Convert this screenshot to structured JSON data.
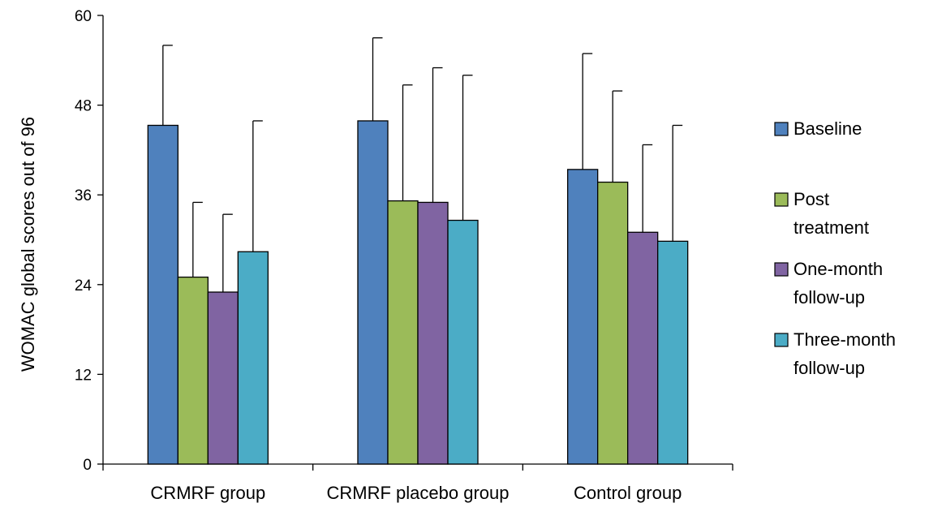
{
  "chart_data": {
    "type": "bar",
    "title": "",
    "xlabel": "",
    "ylabel": "WOMAC global scores out of 96",
    "ylim": [
      0,
      60
    ],
    "yticks": [
      0,
      12,
      24,
      36,
      48,
      60
    ],
    "grid": false,
    "legend_position": "right",
    "categories": [
      "CRMRF group",
      "CRMRF placebo group",
      "Control group"
    ],
    "series": [
      {
        "name": "Baseline",
        "legend_lines": [
          "Baseline"
        ],
        "color": "#4F81BD",
        "values": [
          45.3,
          45.9,
          39.4
        ],
        "error_upper": [
          56.0,
          57.0,
          54.9
        ]
      },
      {
        "name": "Post treatment",
        "legend_lines": [
          "Post",
          "treatment"
        ],
        "color": "#9BBB59",
        "values": [
          25.0,
          35.2,
          37.7
        ],
        "error_upper": [
          35.0,
          50.7,
          49.9
        ]
      },
      {
        "name": "One-month follow-up",
        "legend_lines": [
          "One-month",
          "follow-up"
        ],
        "color": "#8064A2",
        "values": [
          23.0,
          35.0,
          31.0
        ],
        "error_upper": [
          33.4,
          53.0,
          42.7
        ]
      },
      {
        "name": "Three-month follow-up",
        "legend_lines": [
          "Three-month",
          "follow-up"
        ],
        "color": "#4BACC6",
        "values": [
          28.4,
          32.6,
          29.8
        ],
        "error_upper": [
          45.9,
          52.0,
          45.3
        ]
      }
    ]
  }
}
